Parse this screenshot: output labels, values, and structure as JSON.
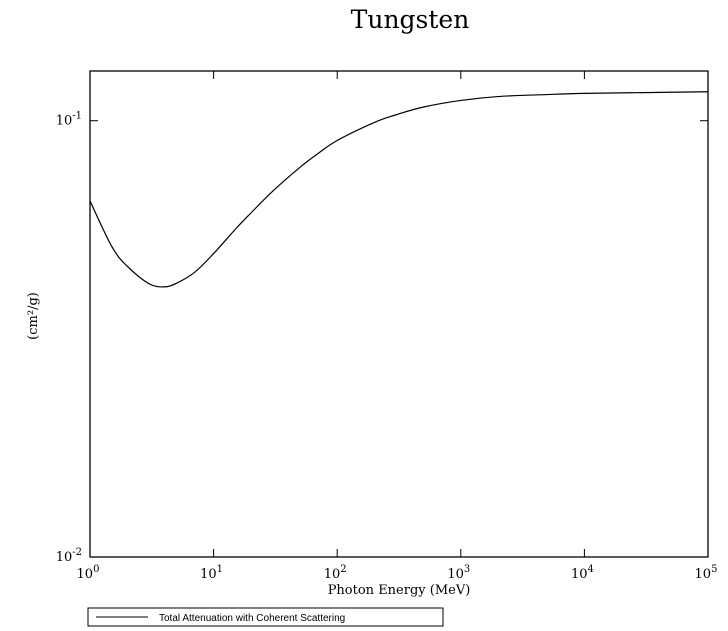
{
  "chart_data": {
    "type": "line",
    "title": "Tungsten",
    "xlabel": "Photon Energy (MeV)",
    "ylabel": "(cm²/g)",
    "x_scale": "log",
    "y_scale": "log",
    "xlim": [
      1,
      100000
    ],
    "ylim": [
      0.01,
      0.13
    ],
    "x_ticks": [
      {
        "base": "10",
        "exp": "0"
      },
      {
        "base": "10",
        "exp": "1"
      },
      {
        "base": "10",
        "exp": "2"
      },
      {
        "base": "10",
        "exp": "3"
      },
      {
        "base": "10",
        "exp": "4"
      },
      {
        "base": "10",
        "exp": "5"
      }
    ],
    "y_ticks": [
      {
        "base": "10",
        "exp": "-1",
        "value": 0.1
      },
      {
        "base": "10",
        "exp": "-2",
        "value": 0.01
      }
    ],
    "grid": false,
    "legend_position": "bottom-left",
    "series": [
      {
        "name": "Total Attenuation with Coherent Scattering",
        "color": "#000000",
        "x": [
          1,
          1.5,
          2,
          3,
          4,
          5,
          7,
          10,
          15,
          20,
          30,
          50,
          70,
          100,
          200,
          300,
          500,
          1000,
          2000,
          5000,
          10000,
          30000,
          100000
        ],
        "y": [
          0.0655,
          0.0515,
          0.0464,
          0.0423,
          0.0416,
          0.0424,
          0.0449,
          0.0496,
          0.0564,
          0.0614,
          0.0689,
          0.0782,
          0.0841,
          0.0901,
          0.0991,
          0.1032,
          0.1075,
          0.1113,
          0.1136,
          0.1148,
          0.1155,
          0.116,
          0.1165
        ]
      }
    ]
  }
}
